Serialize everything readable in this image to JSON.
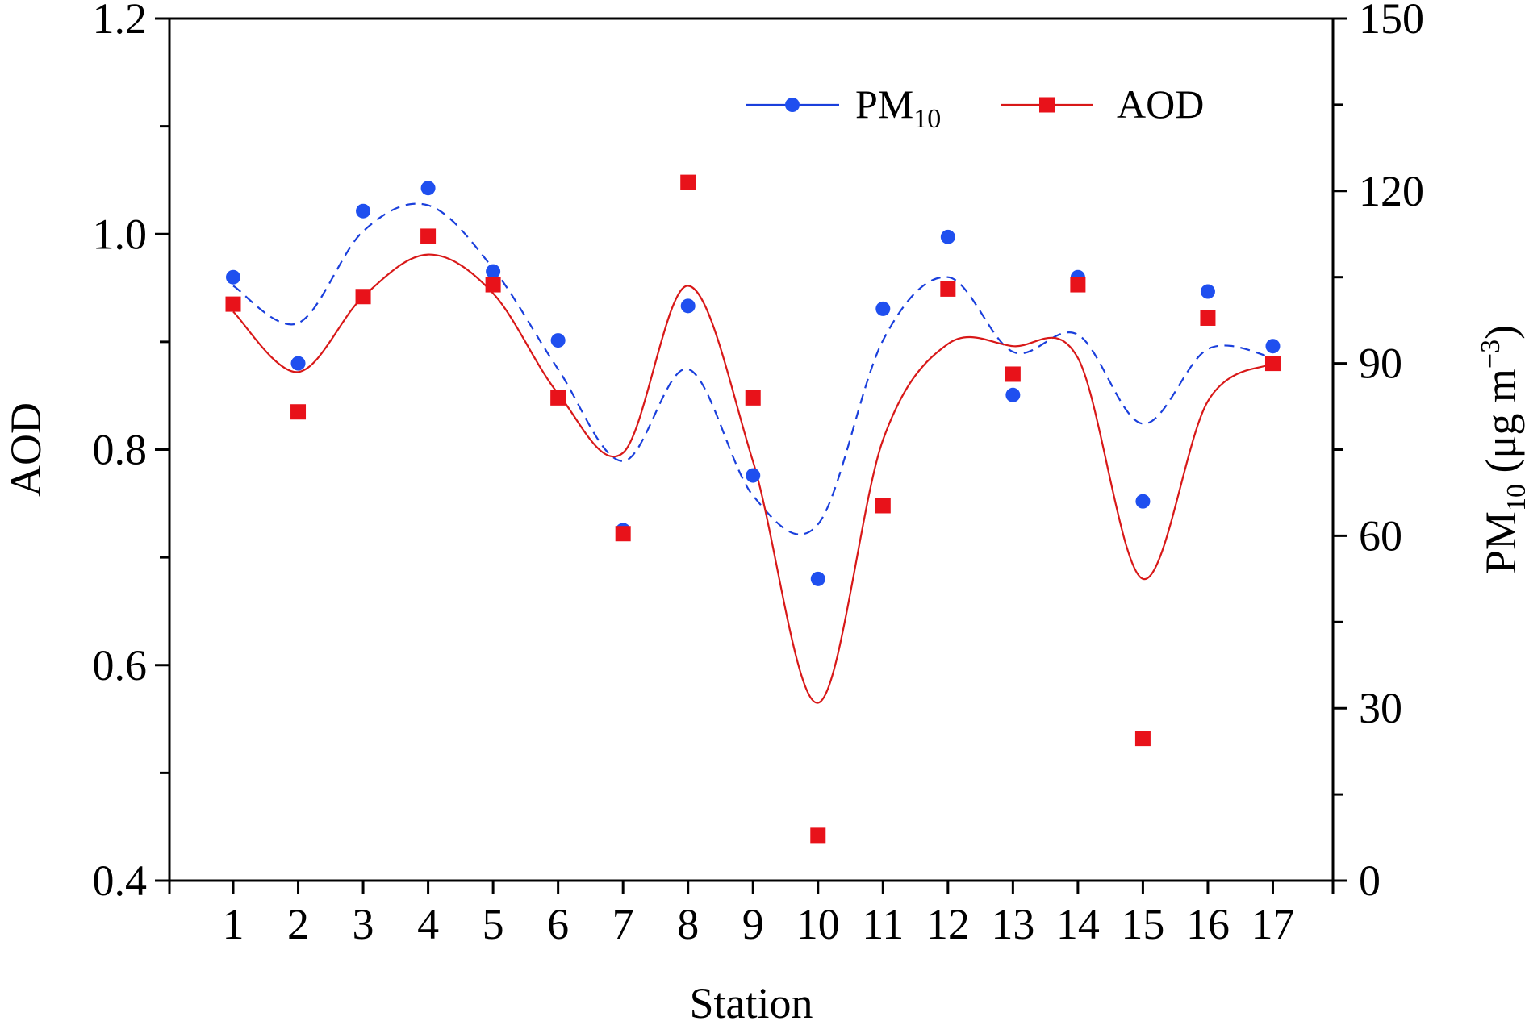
{
  "chart_data": {
    "type": "line+scatter",
    "xlabel": "Station",
    "ylabel_left": "AOD",
    "ylabel_right": {
      "main": "PM",
      "sub": "10",
      "unit_open": " (μg m",
      "sup": "−3",
      "unit_close": ")"
    },
    "categories": [
      "1",
      "2",
      "3",
      "4",
      "5",
      "6",
      "7",
      "8",
      "9",
      "10",
      "11",
      "12",
      "13",
      "14",
      "15",
      "16",
      "17"
    ],
    "x_range": [
      0,
      18
    ],
    "ylim_left": [
      0.4,
      1.2
    ],
    "ylim_right": [
      0,
      150
    ],
    "yticks_left": [
      "0.4",
      "0.6",
      "0.8",
      "1.0",
      "1.2"
    ],
    "yticks_right": [
      "0",
      "30",
      "60",
      "90",
      "120",
      "150"
    ],
    "series": [
      {
        "name": "PM",
        "name_sub": "10",
        "axis": "right",
        "color": "#1f4fef",
        "line_color": "#1a3fdc",
        "line_style": "dashed",
        "marker": "circle",
        "values": [
          105.0,
          90.0,
          116.5,
          120.5,
          106.0,
          94.0,
          61.0,
          100.0,
          70.5,
          52.5,
          99.5,
          112.0,
          84.5,
          105.0,
          66.0,
          102.5,
          93.0
        ],
        "fit_values": [
          103.5,
          97.0,
          113.0,
          117.5,
          106.5,
          89.0,
          73.0,
          89.0,
          67.0,
          62.0,
          94.0,
          105.0,
          92.0,
          95.0,
          79.5,
          92.5,
          91.0
        ]
      },
      {
        "name": "AOD",
        "axis": "left",
        "color": "#e8121a",
        "line_color": "#d81818",
        "line_style": "solid",
        "marker": "square",
        "values": [
          0.935,
          0.835,
          0.942,
          0.998,
          0.953,
          0.848,
          0.722,
          1.048,
          0.848,
          0.442,
          0.748,
          0.949,
          0.87,
          0.953,
          0.532,
          0.922,
          0.88
        ],
        "fit_values": [
          0.928,
          0.872,
          0.942,
          0.981,
          0.945,
          0.852,
          0.797,
          0.952,
          0.789,
          0.565,
          0.809,
          0.898,
          0.896,
          0.885,
          0.68,
          0.845,
          0.88
        ]
      }
    ],
    "legend": {
      "position": "top-right"
    }
  }
}
